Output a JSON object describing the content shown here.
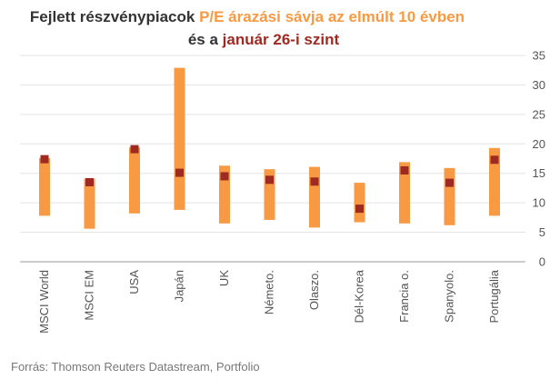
{
  "chart_data": {
    "type": "bar",
    "title_parts": [
      {
        "text": "Fejlett részvénypiacok ",
        "color": "#333333"
      },
      {
        "text": "P/E árazási sávja az elmúlt 10 évben",
        "color": "#f79a43"
      }
    ],
    "subtitle_parts": [
      {
        "text": "és a ",
        "color": "#333333"
      },
      {
        "text": "január 26-i szint",
        "color": "#9e2a22"
      }
    ],
    "categories": [
      "MSCI World",
      "MSCI EM",
      "USA",
      "Japán",
      "UK",
      "Németo.",
      "Olaszo.",
      "Dél-Korea",
      "Francia o.",
      "Spanyolo.",
      "Portugália"
    ],
    "series": [
      {
        "name": "P/E árazási sáv",
        "type": "range",
        "color": "#f79a43",
        "low": [
          7.8,
          5.6,
          8.2,
          8.8,
          6.5,
          7.1,
          5.8,
          6.7,
          6.5,
          6.2,
          7.8
        ],
        "high": [
          17.6,
          14.1,
          19.4,
          32.9,
          16.3,
          15.7,
          16.1,
          13.4,
          16.9,
          15.9,
          19.3
        ]
      },
      {
        "name": "január 26-i szint",
        "type": "point",
        "color": "#9e2a22",
        "values": [
          17.4,
          13.5,
          19.1,
          15.1,
          14.5,
          13.9,
          13.6,
          9.0,
          15.5,
          13.4,
          17.3
        ]
      }
    ],
    "yticks": [
      0,
      5,
      10,
      15,
      20,
      25,
      30,
      35
    ],
    "ylim": [
      0,
      35
    ],
    "y_axis_side": "right",
    "grid": true,
    "legend": false,
    "source": "Forrás: Thomson Reuters Datastream, Portfolio"
  }
}
